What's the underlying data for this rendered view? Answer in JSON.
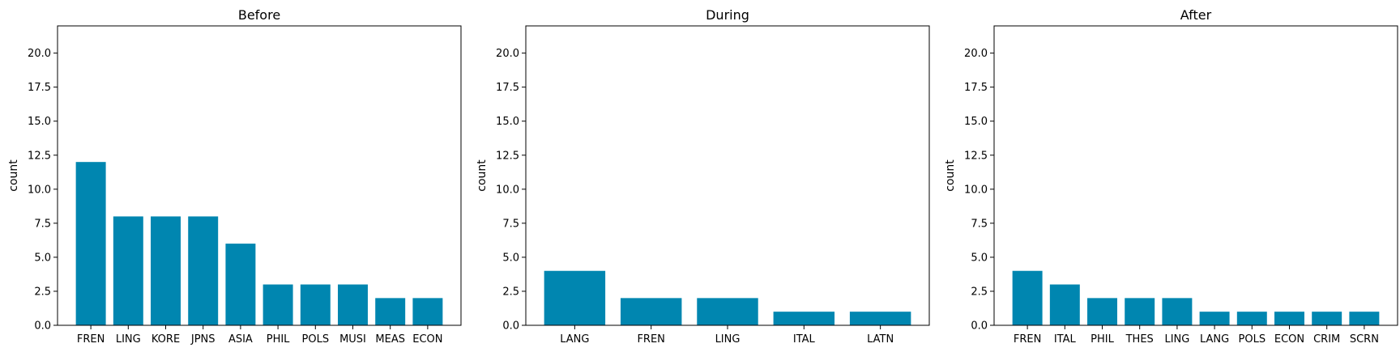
{
  "chart_data": [
    {
      "type": "bar",
      "title": "Before",
      "xlabel": "",
      "ylabel": "count",
      "ylim": [
        0,
        22
      ],
      "yticks": [
        "0.0",
        "2.5",
        "5.0",
        "7.5",
        "10.0",
        "12.5",
        "15.0",
        "17.5",
        "20.0"
      ],
      "categories": [
        "FREN",
        "LING",
        "KORE",
        "JPNS",
        "ASIA",
        "PHIL",
        "POLS",
        "MUSI",
        "MEAS",
        "ECON"
      ],
      "values": [
        12,
        8,
        8,
        8,
        6,
        3,
        3,
        3,
        2,
        2
      ],
      "color": "#0086b0",
      "grid": false
    },
    {
      "type": "bar",
      "title": "During",
      "xlabel": "",
      "ylabel": "count",
      "ylim": [
        0,
        22
      ],
      "yticks": [
        "0.0",
        "2.5",
        "5.0",
        "7.5",
        "10.0",
        "12.5",
        "15.0",
        "17.5",
        "20.0"
      ],
      "categories": [
        "LANG",
        "FREN",
        "LING",
        "ITAL",
        "LATN"
      ],
      "values": [
        4,
        2,
        2,
        1,
        1
      ],
      "color": "#0086b0",
      "grid": false
    },
    {
      "type": "bar",
      "title": "After",
      "xlabel": "",
      "ylabel": "count",
      "ylim": [
        0,
        22
      ],
      "yticks": [
        "0.0",
        "2.5",
        "5.0",
        "7.5",
        "10.0",
        "12.5",
        "15.0",
        "17.5",
        "20.0"
      ],
      "categories": [
        "FREN",
        "ITAL",
        "PHIL",
        "THES",
        "LING",
        "LANG",
        "POLS",
        "ECON",
        "CRIM",
        "SCRN"
      ],
      "values": [
        4,
        3,
        2,
        2,
        2,
        1,
        1,
        1,
        1,
        1
      ],
      "color": "#0086b0",
      "grid": false
    }
  ]
}
